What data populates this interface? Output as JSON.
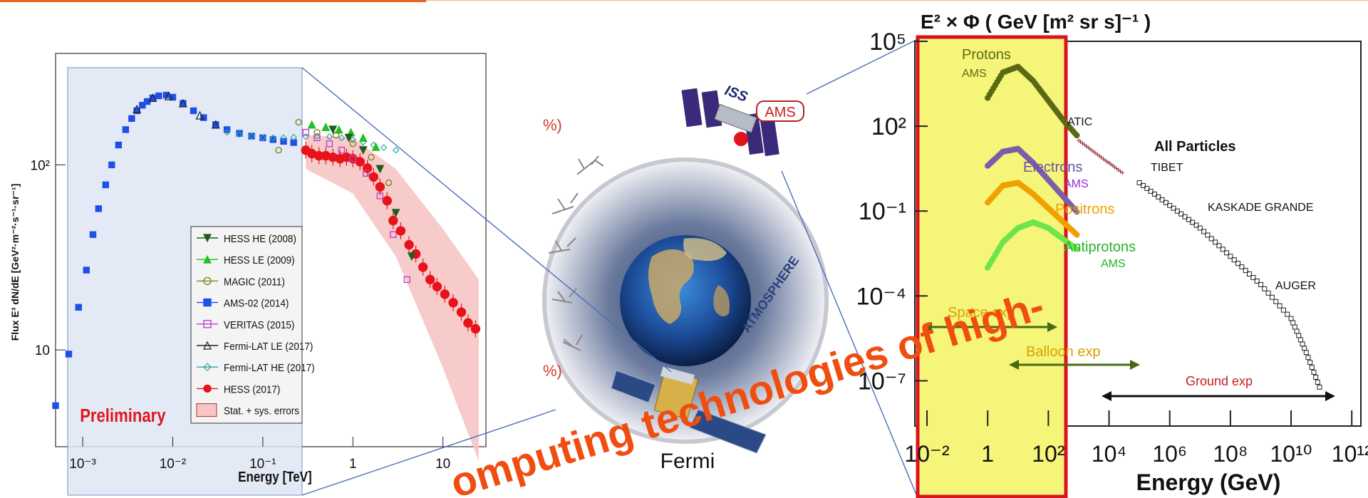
{
  "chart_data": [
    {
      "type": "scatter",
      "title": "",
      "xlabel": "Energy [TeV]",
      "ylabel": "Flux E³ dN/dE [GeV²·m⁻²·s⁻¹·sr⁻¹]",
      "xscale": "log",
      "yscale": "log",
      "xlim": [
        0.0005,
        30
      ],
      "ylim": [
        3,
        400
      ],
      "xticks": [
        "10⁻³",
        "10⁻²",
        "10⁻¹",
        "1",
        "10"
      ],
      "yticks": [
        "10",
        "10²"
      ],
      "annotation": "Preliminary",
      "legend_position": "bottom-center",
      "legend": [
        {
          "label": "HESS HE (2008)",
          "color": "#1e5e1e",
          "marker": "triangle-down"
        },
        {
          "label": "HESS LE (2009)",
          "color": "#22c022",
          "marker": "triangle-up"
        },
        {
          "label": "MAGIC (2011)",
          "color": "#808020",
          "marker": "circle-open"
        },
        {
          "label": "AMS-02 (2014)",
          "color": "#1f4fe6",
          "marker": "square"
        },
        {
          "label": "VERITAS (2015)",
          "color": "#c040c8",
          "marker": "square-open"
        },
        {
          "label": "Fermi-LAT LE (2017)",
          "color": "#222222",
          "marker": "triangle-open"
        },
        {
          "label": "Fermi-LAT HE (2017)",
          "color": "#2aa6a6",
          "marker": "diamond-open"
        },
        {
          "label": "HESS (2017)",
          "color": "#e8121a",
          "marker": "circle"
        },
        {
          "label": "Stat. + sys. errors",
          "color": "#f7c5c5",
          "marker": "band"
        }
      ],
      "series": [
        {
          "name": "AMS-02 (2014)",
          "color": "#1f4fe6",
          "x": [
            0.0005,
            0.0007,
            0.0009,
            0.0011,
            0.0013,
            0.0015,
            0.0018,
            0.0021,
            0.0025,
            0.003,
            0.0035,
            0.004,
            0.0046,
            0.0052,
            0.006,
            0.007,
            0.0085,
            0.01,
            0.013,
            0.017,
            0.022,
            0.03,
            0.04,
            0.055,
            0.075,
            0.1,
            0.13,
            0.17,
            0.22
          ],
          "y": [
            5,
            9.5,
            17,
            27,
            42,
            58,
            78,
            100,
            128,
            155,
            178,
            196,
            210,
            220,
            230,
            236,
            238,
            232,
            215,
            196,
            180,
            165,
            155,
            148,
            143,
            140,
            137,
            134,
            132
          ]
        },
        {
          "name": "Fermi-LAT HE (2017)",
          "color": "#2aa6a6",
          "x": [
            0.04,
            0.055,
            0.075,
            0.1,
            0.13,
            0.17,
            0.22,
            0.3,
            0.4,
            0.55,
            0.75,
            1.0,
            1.3,
            1.7,
            2.2,
            3.0
          ],
          "y": [
            150,
            146,
            143,
            140,
            140,
            140,
            141,
            142,
            143,
            142,
            140,
            137,
            133,
            128,
            124,
            120
          ]
        },
        {
          "name": "HESS (2017)",
          "color": "#e8121a",
          "x": [
            0.3,
            0.35,
            0.42,
            0.5,
            0.6,
            0.72,
            0.85,
            1.0,
            1.2,
            1.45,
            1.7,
            2.0,
            2.4,
            2.8,
            3.4,
            4.2,
            5,
            6,
            7.2,
            8.6,
            10.5,
            13,
            16,
            19,
            23
          ],
          "y": [
            120,
            115,
            112,
            112,
            110,
            108,
            110,
            108,
            104,
            96,
            86,
            76,
            64,
            50,
            44,
            37,
            33,
            28,
            24,
            22,
            20,
            18,
            16,
            14,
            13
          ]
        },
        {
          "name": "VERITAS (2015)",
          "color": "#c040c8",
          "x": [
            0.3,
            0.4,
            0.55,
            0.75,
            1.0,
            1.4,
            2.0,
            2.8,
            4.0
          ],
          "y": [
            150,
            140,
            130,
            120,
            108,
            90,
            68,
            42,
            24
          ]
        },
        {
          "name": "HESS LE (2009)",
          "color": "#22c022",
          "x": [
            0.35,
            0.5,
            0.7,
            0.95,
            1.3,
            1.8
          ],
          "y": [
            165,
            160,
            155,
            150,
            140,
            125
          ]
        },
        {
          "name": "HESS HE (2008)",
          "color": "#1e5e1e",
          "x": [
            0.6,
            0.9,
            1.3,
            2.0,
            3.0,
            4.5
          ],
          "y": [
            155,
            140,
            120,
            95,
            55,
            32
          ]
        },
        {
          "name": "MAGIC (2011)",
          "color": "#808020",
          "x": [
            0.15,
            0.25,
            0.4,
            0.65,
            1.0,
            1.6,
            2.5
          ],
          "y": [
            120,
            170,
            150,
            145,
            130,
            110,
            80
          ]
        },
        {
          "name": "Fermi-LAT LE (2017)",
          "color": "#222222",
          "x": [
            0.004,
            0.006,
            0.009,
            0.013,
            0.02,
            0.03
          ],
          "y": [
            200,
            230,
            235,
            215,
            185,
            165
          ]
        }
      ],
      "band": {
        "name": "Stat. + sys. errors",
        "x": [
          0.3,
          1,
          3,
          10,
          25
        ],
        "lower": [
          95,
          70,
          32,
          8,
          2.5
        ],
        "upper": [
          145,
          140,
          95,
          45,
          24
        ]
      }
    },
    {
      "type": "scatter",
      "title": "E² × Φ ( GeV [m² sr s]⁻¹ )",
      "xlabel": "Energy (GeV)",
      "xscale": "log",
      "yscale": "log",
      "xticks": [
        "10⁻²",
        "1",
        "10²",
        "10⁴",
        "10⁶",
        "10⁸",
        "10¹⁰",
        "10¹²"
      ],
      "yticks": [
        "10⁵",
        "10²",
        "10⁻¹",
        "10⁻⁴",
        "10⁻⁷"
      ],
      "labels": [
        "Protons",
        "AMS",
        "ATIC",
        "All Particles",
        "TIBET",
        "Electrons",
        "AMS",
        "Positrons",
        "KASKADE GRANDE",
        "Antiprotons",
        "AMS",
        "AUGER",
        "Space exp",
        "Balloon exp",
        "Ground exp"
      ],
      "series": [
        {
          "name": "Protons",
          "color": "#5a6a12",
          "x_exp": [
            0,
            0.5,
            1,
            1.5,
            2,
            2.5,
            3
          ],
          "y_exp": [
            3,
            3.9,
            4.1,
            3.6,
            2.9,
            2.2,
            1.6
          ]
        },
        {
          "name": "Electrons",
          "color": "#7a5ea8",
          "x_exp": [
            0,
            0.5,
            1,
            1.5,
            2,
            2.5,
            3
          ],
          "y_exp": [
            0.6,
            1.1,
            1.2,
            0.7,
            0.1,
            -0.5,
            -1.1
          ]
        },
        {
          "name": "Positrons",
          "color": "#f0a000",
          "x_exp": [
            0,
            0.5,
            1,
            1.5,
            2,
            2.5,
            3
          ],
          "y_exp": [
            -0.7,
            -0.1,
            0,
            -0.4,
            -0.9,
            -1.4,
            -1.9
          ]
        },
        {
          "name": "Antiprotons",
          "color": "#6de44a",
          "x_exp": [
            0,
            0.5,
            1,
            1.5,
            2,
            2.5,
            3
          ],
          "y_exp": [
            -3,
            -2.1,
            -1.6,
            -1.4,
            -1.6,
            -2,
            -2.4
          ]
        },
        {
          "name": "ATIC",
          "color": "#8a1a22",
          "x_exp": [
            3,
            3.5,
            4,
            4.5
          ],
          "y_exp": [
            1.5,
            1.1,
            0.7,
            0.3
          ]
        },
        {
          "name": "All Particles",
          "color": "#222222",
          "x_exp": [
            5,
            6,
            7,
            8,
            9,
            10,
            10.5,
            11
          ],
          "y_exp": [
            0,
            -0.8,
            -1.6,
            -2.6,
            -3.6,
            -4.8,
            -6,
            -7.4
          ]
        }
      ],
      "regions": [
        {
          "label": "Space exp",
          "from": 0.01,
          "to": 1000
        },
        {
          "label": "Balloon exp",
          "from": 100,
          "to": 1000000
        },
        {
          "label": "Ground exp",
          "from": 100000,
          "to": 10000000000000
        }
      ]
    }
  ],
  "center": {
    "iss_label": "ISS",
    "ams_label": "AMS",
    "atmosphere_label": "ATMOSPHERE",
    "fermi_label": "Fermi",
    "partial_left_top": "%)",
    "partial_left_bottom": "%)"
  },
  "overlay_text": "omputing technologies of high-",
  "colors": {
    "accent": "#e8641f",
    "overlay": "#f04e10",
    "highlight_fill": "#f5f57a",
    "highlight_border": "#d8141c"
  }
}
